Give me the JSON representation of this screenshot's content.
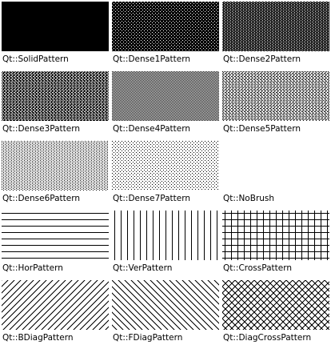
{
  "colors": {
    "background": "#ffffff",
    "foreground": "#000000"
  },
  "patterns": [
    {
      "id": "solid",
      "label": "Qt::SolidPattern"
    },
    {
      "id": "dense1",
      "label": "Qt::Dense1Pattern"
    },
    {
      "id": "dense2",
      "label": "Qt::Dense2Pattern"
    },
    {
      "id": "dense3",
      "label": "Qt::Dense3Pattern"
    },
    {
      "id": "dense4",
      "label": "Qt::Dense4Pattern"
    },
    {
      "id": "dense5",
      "label": "Qt::Dense5Pattern"
    },
    {
      "id": "dense6",
      "label": "Qt::Dense6Pattern"
    },
    {
      "id": "dense7",
      "label": "Qt::Dense7Pattern"
    },
    {
      "id": "nobrush",
      "label": "Qt::NoBrush"
    },
    {
      "id": "hor",
      "label": "Qt::HorPattern"
    },
    {
      "id": "ver",
      "label": "Qt::VerPattern"
    },
    {
      "id": "cross",
      "label": "Qt::CrossPattern"
    },
    {
      "id": "bdiag",
      "label": "Qt::BDiagPattern"
    },
    {
      "id": "fdiag",
      "label": "Qt::FDiagPattern"
    },
    {
      "id": "diagcross",
      "label": "Qt::DiagCrossPattern"
    }
  ]
}
